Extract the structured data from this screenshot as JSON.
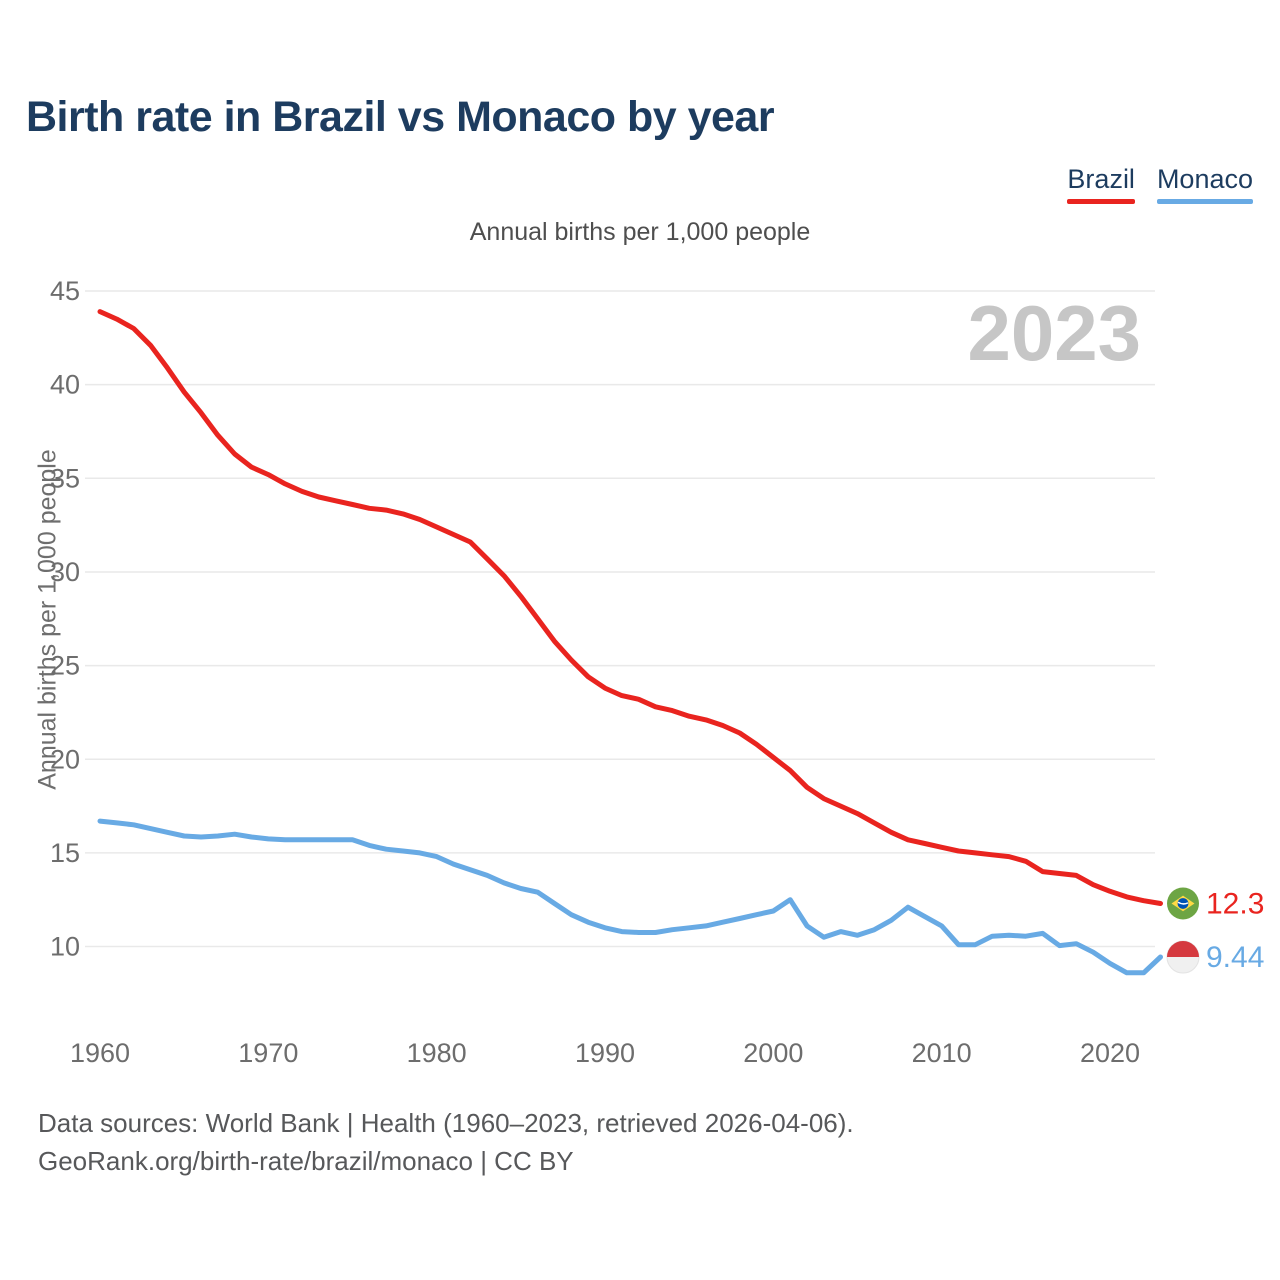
{
  "page": {
    "title": "Birth rate in Brazil vs Monaco by year",
    "watermark": "2023"
  },
  "legend": {
    "items": [
      {
        "label": "Brazil",
        "color": "#e9241f"
      },
      {
        "label": "Monaco",
        "color": "#68aae4"
      }
    ]
  },
  "chart_data": {
    "type": "line",
    "title": "Annual births per 1,000 people",
    "ylabel": "Annual births per 1,000 people",
    "xlabel": "",
    "x": [
      1960,
      1961,
      1962,
      1963,
      1964,
      1965,
      1966,
      1967,
      1968,
      1969,
      1970,
      1971,
      1972,
      1973,
      1974,
      1975,
      1976,
      1977,
      1978,
      1979,
      1980,
      1981,
      1982,
      1983,
      1984,
      1985,
      1986,
      1987,
      1988,
      1989,
      1990,
      1991,
      1992,
      1993,
      1994,
      1995,
      1996,
      1997,
      1998,
      1999,
      2000,
      2001,
      2002,
      2003,
      2004,
      2005,
      2006,
      2007,
      2008,
      2009,
      2010,
      2011,
      2012,
      2013,
      2014,
      2015,
      2016,
      2017,
      2018,
      2019,
      2020,
      2021,
      2022,
      2023
    ],
    "series": [
      {
        "name": "Brazil",
        "color": "#e9241f",
        "end_label": "12.3",
        "flag_icon": "brazil-flag-icon",
        "values": [
          43.9,
          43.5,
          43.0,
          42.1,
          40.9,
          39.6,
          38.5,
          37.3,
          36.3,
          35.6,
          35.2,
          34.7,
          34.3,
          34.0,
          33.8,
          33.6,
          33.4,
          33.3,
          33.1,
          32.8,
          32.4,
          32.0,
          31.6,
          30.7,
          29.8,
          28.7,
          27.5,
          26.3,
          25.3,
          24.4,
          23.8,
          23.4,
          23.2,
          22.8,
          22.6,
          22.3,
          22.1,
          21.8,
          21.4,
          20.8,
          20.1,
          19.4,
          18.5,
          17.9,
          17.5,
          17.1,
          16.6,
          16.1,
          15.7,
          15.5,
          15.3,
          15.1,
          15.0,
          14.9,
          14.8,
          14.55,
          14.0,
          13.9,
          13.8,
          13.3,
          12.95,
          12.65,
          12.45,
          12.3
        ]
      },
      {
        "name": "Monaco",
        "color": "#68aae4",
        "end_label": "9.44",
        "flag_icon": "monaco-flag-icon",
        "values": [
          16.7,
          16.6,
          16.5,
          16.3,
          16.1,
          15.9,
          15.85,
          15.9,
          16.0,
          15.85,
          15.75,
          15.7,
          15.7,
          15.7,
          15.7,
          15.7,
          15.4,
          15.2,
          15.1,
          15.0,
          14.8,
          14.4,
          14.1,
          13.8,
          13.4,
          13.1,
          12.9,
          12.3,
          11.7,
          11.3,
          11.0,
          10.8,
          10.75,
          10.75,
          10.9,
          11.0,
          11.1,
          11.3,
          11.5,
          11.7,
          11.9,
          12.5,
          11.1,
          10.5,
          10.8,
          10.6,
          10.9,
          11.4,
          12.1,
          11.6,
          11.1,
          10.1,
          10.1,
          10.55,
          10.6,
          10.55,
          10.7,
          10.05,
          10.15,
          9.7,
          9.1,
          8.6,
          8.6,
          9.44
        ]
      }
    ],
    "yticks": [
      10,
      15,
      20,
      25,
      30,
      35,
      40,
      45
    ],
    "xticks": [
      1960,
      1970,
      1980,
      1990,
      2000,
      2010,
      2020
    ],
    "ylim": [
      8,
      46
    ],
    "xlim": [
      1959,
      2024
    ],
    "grid": true,
    "legend_position": "top-right"
  },
  "footer": {
    "line1": "Data sources: World Bank | Health (1960–2023, retrieved 2026-04-06).",
    "line2": "GeoRank.org/birth-rate/brazil/monaco | CC BY"
  }
}
